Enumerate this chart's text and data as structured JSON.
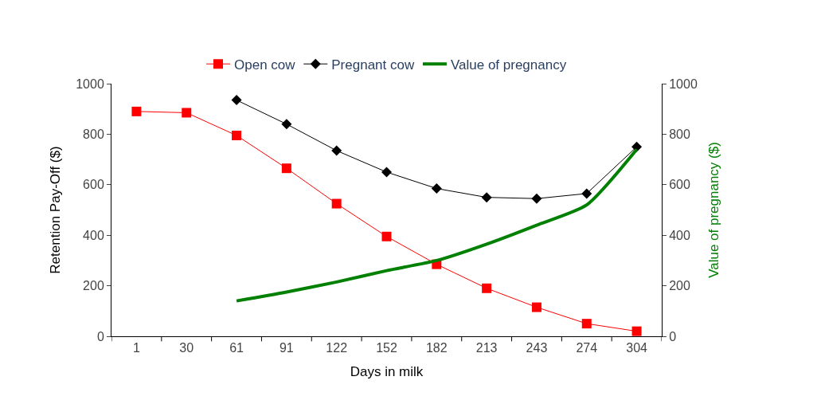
{
  "chart_data": {
    "type": "line",
    "xlabel": "Days in milk",
    "ylabel": "Retention Pay-Off ($)",
    "y2label": "Value of pregnancy ($)",
    "categories": [
      "1",
      "30",
      "61",
      "91",
      "122",
      "152",
      "182",
      "213",
      "243",
      "274",
      "304"
    ],
    "series": [
      {
        "name": "Open cow",
        "color": "#ff0000",
        "marker": "square",
        "values": [
          890,
          885,
          795,
          665,
          525,
          395,
          285,
          190,
          115,
          50,
          20
        ]
      },
      {
        "name": "Pregnant cow",
        "color": "#000000",
        "marker": "diamond",
        "values": [
          null,
          null,
          935,
          840,
          735,
          650,
          585,
          550,
          545,
          565,
          750
        ]
      },
      {
        "name": "Value of pregnancy",
        "color": "#008000",
        "marker": "none",
        "axis": "y2",
        "values": [
          null,
          null,
          140,
          175,
          215,
          260,
          300,
          365,
          440,
          520,
          740
        ]
      }
    ],
    "ylim": [
      0,
      1000
    ],
    "yticks": [
      0,
      200,
      400,
      600,
      800,
      1000
    ],
    "y2lim": [
      0,
      1000
    ],
    "y2ticks": [
      0,
      200,
      400,
      600,
      800,
      1000
    ],
    "grid": false,
    "legend": "top"
  }
}
